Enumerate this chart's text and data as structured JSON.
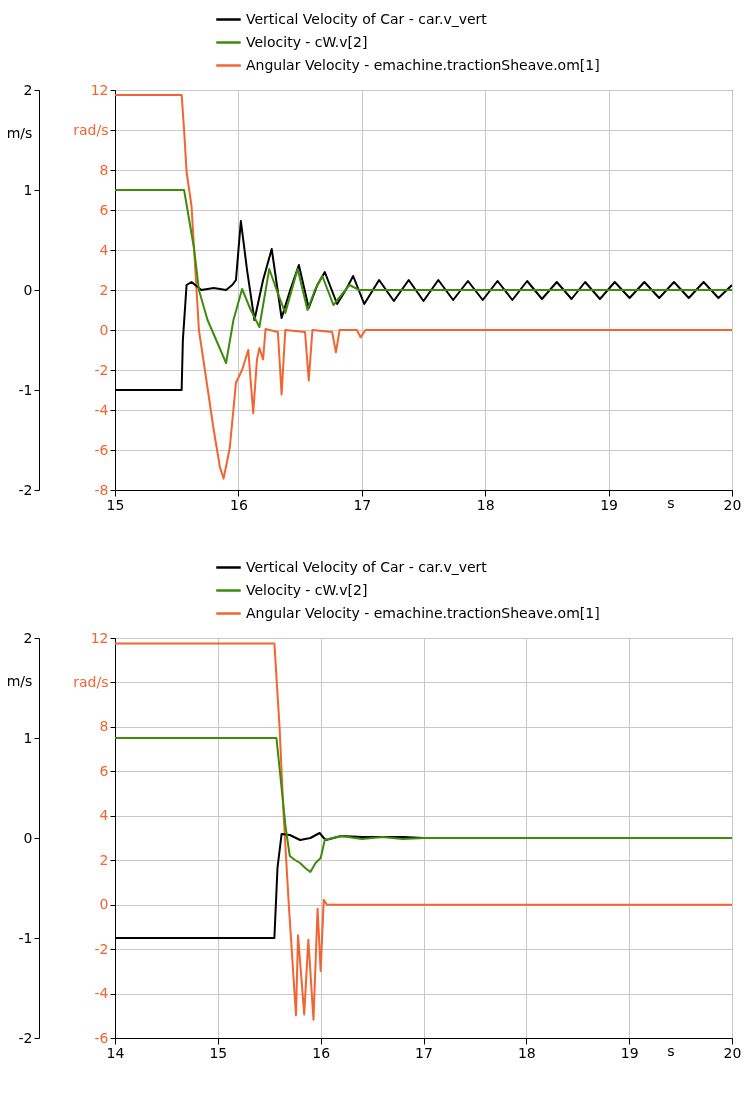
{
  "chart_data": [
    {
      "type": "line",
      "xlabel": "s",
      "y2label": "m/s",
      "xlim": [
        15,
        20
      ],
      "xticks": [
        15,
        16,
        17,
        18,
        19,
        20
      ],
      "ylim": [
        -8,
        12
      ],
      "yticks": [
        -8,
        -6,
        -4,
        -2,
        0,
        2,
        4,
        6,
        8,
        {
          "value": 10,
          "label": "rad/s"
        },
        12
      ],
      "y2lim": [
        -2,
        2
      ],
      "y2ticks": [
        -2,
        -1,
        0,
        1,
        2
      ],
      "grid": true,
      "legend": "top",
      "series": [
        {
          "name": "Vertical Velocity of Car - car.v_vert",
          "color": "#000000",
          "axis": "y2",
          "x": [
            15,
            15.54,
            15.55,
            15.58,
            15.62,
            15.7,
            15.8,
            15.9,
            15.95,
            15.98,
            16.02,
            16.07,
            16.13,
            16.2,
            16.27,
            16.35,
            16.42,
            16.49,
            16.57,
            16.64,
            16.7,
            16.8,
            16.87,
            16.93,
            17.02,
            17.14,
            17.26,
            17.38,
            17.5,
            17.62,
            17.74,
            17.86,
            17.98,
            18.1,
            18.22,
            18.34,
            18.46,
            18.58,
            18.7,
            18.81,
            18.93,
            19.05,
            19.17,
            19.29,
            19.41,
            19.53,
            19.65,
            19.77,
            19.89,
            20
          ],
          "values": [
            -1,
            -1,
            -0.5,
            0.05,
            0.08,
            0,
            0.02,
            0,
            0.05,
            0.1,
            0.69,
            0.2,
            -0.3,
            0.1,
            0.41,
            -0.28,
            0,
            0.25,
            -0.18,
            0.05,
            0.18,
            -0.14,
            0,
            0.14,
            -0.14,
            0.1,
            -0.11,
            0.1,
            -0.11,
            0.1,
            -0.1,
            0.09,
            -0.1,
            0.09,
            -0.1,
            0.09,
            -0.09,
            0.08,
            -0.09,
            0.08,
            -0.09,
            0.08,
            -0.08,
            0.08,
            -0.08,
            0.08,
            -0.08,
            0.08,
            -0.08,
            0.05
          ]
        },
        {
          "name": "Velocity - cW.v[2]",
          "color": "#3c8c0a",
          "axis": "y2",
          "x": [
            15,
            15.56,
            15.64,
            15.68,
            15.75,
            15.82,
            15.9,
            15.96,
            16.03,
            16.1,
            16.17,
            16.25,
            16.31,
            16.38,
            16.48,
            16.56,
            16.62,
            16.68,
            16.77,
            16.9,
            16.98,
            20
          ],
          "values": [
            1,
            1,
            0.42,
            0,
            -0.3,
            -0.5,
            -0.73,
            -0.3,
            0.01,
            -0.2,
            -0.37,
            0.21,
            0,
            -0.23,
            0.21,
            -0.2,
            0,
            0.14,
            -0.15,
            0.05,
            0,
            0
          ]
        },
        {
          "name": "Angular Velocity - emachine.tractionSheave.om[1]",
          "color": "#f26430",
          "axis": "y",
          "x": [
            15,
            15.54,
            15.56,
            15.58,
            15.62,
            15.68,
            15.75,
            15.8,
            15.85,
            15.88,
            15.93,
            15.98,
            16.03,
            16.08,
            16.12,
            16.15,
            16.17,
            16.2,
            16.22,
            16.32,
            16.35,
            16.38,
            16.54,
            16.57,
            16.6,
            16.76,
            16.79,
            16.82,
            16.96,
            16.99,
            17.03,
            20
          ],
          "values": [
            11.75,
            11.75,
            10,
            7.9,
            6.2,
            0,
            -2.9,
            -5,
            -6.85,
            -7.43,
            -5.9,
            -2.64,
            -2,
            -1,
            -4.16,
            -1.5,
            -0.9,
            -1.47,
            0.05,
            -0.1,
            -3.22,
            0,
            -0.1,
            -2.52,
            0,
            -0.1,
            -1.12,
            0,
            0,
            -0.37,
            0,
            0
          ]
        }
      ]
    },
    {
      "type": "line",
      "xlabel": "s",
      "y2label": "m/s",
      "xlim": [
        14,
        20
      ],
      "xticks": [
        14,
        15,
        16,
        17,
        18,
        19,
        20
      ],
      "ylim": [
        -6,
        12
      ],
      "yticks": [
        -6,
        -4,
        -2,
        0,
        2,
        4,
        6,
        8,
        {
          "value": 10,
          "label": "rad/s"
        },
        12
      ],
      "y2lim": [
        -2,
        2
      ],
      "y2ticks": [
        -2,
        -1,
        0,
        1,
        2
      ],
      "grid": true,
      "legend": "top",
      "series": [
        {
          "name": "Vertical Velocity of Car - car.v_vert",
          "color": "#000000",
          "axis": "y2",
          "x": [
            14,
            15.55,
            15.58,
            15.62,
            15.7,
            15.8,
            15.9,
            15.99,
            16.03,
            16.05,
            16.2,
            16.4,
            16.6,
            16.8,
            17,
            19
          ],
          "values": [
            -1,
            -1,
            -0.3,
            0.04,
            0.03,
            -0.02,
            0,
            0.05,
            0,
            -0.02,
            0.02,
            0.01,
            0.01,
            0.01,
            0,
            0
          ]
        },
        {
          "name": "Velocity - cW.v[2]",
          "color": "#3c8c0a",
          "axis": "y2",
          "x": [
            14,
            15.57,
            15.62,
            15.66,
            15.7,
            15.75,
            15.8,
            15.85,
            15.9,
            15.95,
            16,
            16.04,
            16.2,
            16.4,
            16.6,
            16.8,
            17,
            20
          ],
          "values": [
            1,
            1,
            0.5,
            0.1,
            -0.18,
            -0.22,
            -0.25,
            -0.3,
            -0.34,
            -0.25,
            -0.2,
            -0.02,
            0.02,
            -0.01,
            0.01,
            -0.01,
            0,
            0
          ]
        },
        {
          "name": "Angular Velocity - emachine.tractionSheave.om[1]",
          "color": "#f26430",
          "axis": "y",
          "x": [
            14,
            15.55,
            15.6,
            15.64,
            15.69,
            15.76,
            15.78,
            15.84,
            15.88,
            15.93,
            15.97,
            16,
            16.03,
            16.06,
            20
          ],
          "values": [
            11.75,
            11.75,
            8,
            4,
            0,
            -4.98,
            -1.38,
            -4.94,
            -1.58,
            -5.18,
            -0.18,
            -2.98,
            0.22,
            0,
            0
          ]
        }
      ]
    }
  ]
}
